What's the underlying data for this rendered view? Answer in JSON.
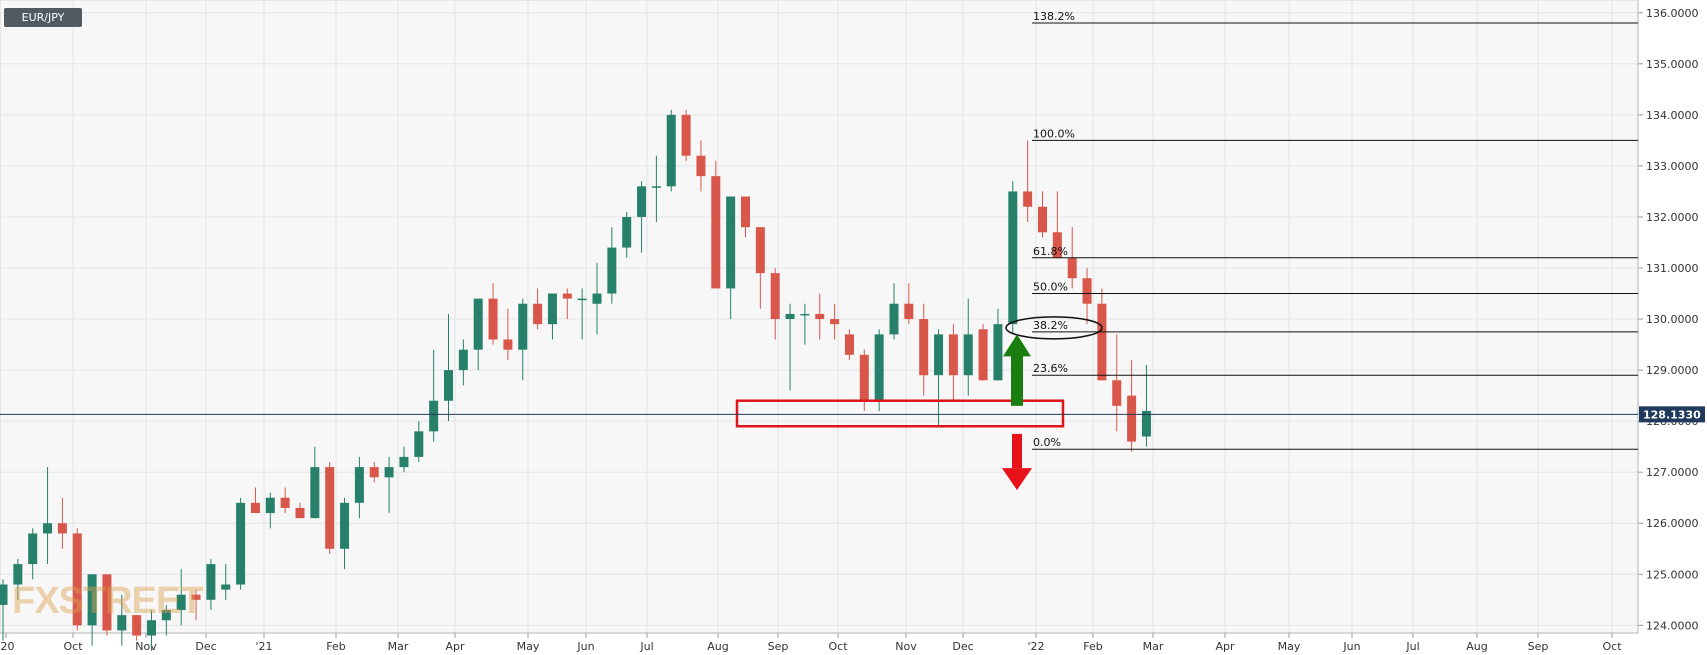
{
  "symbol": "EUR/JPY",
  "watermark": "FXSTREET",
  "colors": {
    "up": "#26806a",
    "down": "#d9574a",
    "grid": "#e2e6ea",
    "background": "#f7f7f7",
    "axis_text": "#333333",
    "price_line": "#1f3a5c",
    "support_box": "#e0141c",
    "up_arrow": "#1a7d10",
    "down_arrow": "#e8121a"
  },
  "chart_data": {
    "type": "candlestick",
    "timeframe": "weekly",
    "y_axis": {
      "ticks": [
        "124.0000",
        "125.0000",
        "126.0000",
        "127.0000",
        "128.0000",
        "129.0000",
        "130.0000",
        "131.0000",
        "132.0000",
        "133.0000",
        "134.0000",
        "135.0000",
        "136.0000"
      ],
      "range": [
        123.85,
        136.25
      ]
    },
    "x_axis": {
      "ticks": [
        "'20",
        "Oct",
        "Nov",
        "Dec",
        "'21",
        "Feb",
        "Mar",
        "Apr",
        "May",
        "Jun",
        "Jul",
        "Aug",
        "Sep",
        "Oct",
        "Nov",
        "Dec",
        "'22",
        "Feb",
        "Mar",
        "Apr",
        "May",
        "Jun",
        "Jul",
        "Aug",
        "Sep",
        "Oct"
      ]
    },
    "current_price": "128.1330",
    "candles": [
      [
        124.4,
        124.9,
        123.7,
        124.8
      ],
      [
        124.8,
        125.3,
        124.5,
        125.2
      ],
      [
        125.2,
        125.9,
        124.9,
        125.8
      ],
      [
        125.8,
        127.1,
        125.2,
        126.0
      ],
      [
        126.0,
        126.5,
        125.5,
        125.8
      ],
      [
        125.8,
        125.9,
        123.9,
        124.0
      ],
      [
        124.0,
        125.0,
        123.6,
        125.0
      ],
      [
        125.0,
        125.0,
        123.8,
        123.9
      ],
      [
        123.9,
        124.6,
        123.6,
        124.2
      ],
      [
        124.2,
        124.2,
        123.7,
        123.8
      ],
      [
        123.8,
        124.3,
        123.5,
        124.1
      ],
      [
        124.1,
        124.4,
        123.8,
        124.3
      ],
      [
        124.3,
        125.1,
        124.0,
        124.6
      ],
      [
        124.6,
        124.7,
        124.1,
        124.5
      ],
      [
        124.5,
        125.3,
        124.3,
        125.2
      ],
      [
        124.7,
        125.2,
        124.5,
        124.8
      ],
      [
        124.8,
        126.5,
        124.7,
        126.4
      ],
      [
        126.4,
        126.7,
        126.2,
        126.2
      ],
      [
        126.2,
        126.6,
        125.9,
        126.5
      ],
      [
        126.5,
        126.7,
        126.2,
        126.3
      ],
      [
        126.3,
        126.4,
        126.1,
        126.1
      ],
      [
        126.1,
        127.5,
        126.1,
        127.1
      ],
      [
        127.1,
        127.2,
        125.4,
        125.5
      ],
      [
        125.5,
        126.5,
        125.1,
        126.4
      ],
      [
        126.4,
        127.3,
        126.1,
        127.1
      ],
      [
        127.1,
        127.2,
        126.8,
        126.9
      ],
      [
        126.9,
        127.3,
        126.2,
        127.1
      ],
      [
        127.1,
        127.5,
        127.0,
        127.3
      ],
      [
        127.3,
        128.0,
        127.2,
        127.8
      ],
      [
        127.8,
        129.4,
        127.6,
        128.4
      ],
      [
        128.4,
        130.1,
        128.0,
        129.0
      ],
      [
        129.0,
        129.6,
        128.7,
        129.4
      ],
      [
        129.4,
        130.4,
        129.0,
        130.4
      ],
      [
        130.4,
        130.7,
        129.5,
        129.6
      ],
      [
        129.6,
        130.2,
        129.2,
        129.4
      ],
      [
        129.4,
        130.4,
        128.8,
        130.3
      ],
      [
        130.3,
        130.6,
        129.8,
        129.9
      ],
      [
        129.9,
        130.5,
        129.6,
        130.5
      ],
      [
        130.5,
        130.6,
        130.0,
        130.4
      ],
      [
        130.4,
        130.6,
        129.6,
        130.4
      ],
      [
        130.3,
        131.1,
        129.7,
        130.5
      ],
      [
        130.5,
        131.8,
        130.3,
        131.4
      ],
      [
        131.4,
        132.1,
        131.2,
        132.0
      ],
      [
        132.0,
        132.7,
        131.3,
        132.6
      ],
      [
        132.6,
        133.2,
        131.9,
        132.6
      ],
      [
        132.6,
        134.1,
        132.5,
        134.0
      ],
      [
        134.0,
        134.1,
        133.1,
        133.2
      ],
      [
        133.2,
        133.5,
        132.5,
        132.8
      ],
      [
        132.8,
        133.1,
        130.6,
        130.6
      ],
      [
        130.6,
        132.4,
        130.0,
        132.4
      ],
      [
        132.4,
        132.4,
        131.6,
        131.8
      ],
      [
        131.8,
        131.8,
        130.2,
        130.9
      ],
      [
        130.9,
        131.0,
        129.6,
        130.0
      ],
      [
        130.0,
        130.3,
        128.6,
        130.1
      ],
      [
        130.1,
        130.3,
        129.5,
        130.1
      ],
      [
        130.1,
        130.5,
        129.6,
        130.0
      ],
      [
        130.0,
        130.3,
        129.6,
        129.9
      ],
      [
        129.7,
        129.8,
        129.2,
        129.3
      ],
      [
        129.3,
        129.4,
        128.2,
        128.4
      ],
      [
        128.4,
        129.8,
        128.2,
        129.7
      ],
      [
        129.7,
        130.7,
        129.6,
        130.3
      ],
      [
        130.3,
        130.7,
        129.9,
        130.0
      ],
      [
        130.0,
        130.3,
        128.5,
        128.9
      ],
      [
        128.9,
        129.8,
        127.9,
        129.7
      ],
      [
        129.7,
        129.9,
        128.4,
        128.9
      ],
      [
        128.9,
        130.4,
        128.5,
        129.7
      ],
      [
        129.8,
        129.9,
        128.8,
        128.8
      ],
      [
        128.8,
        130.2,
        128.8,
        129.9
      ],
      [
        129.9,
        132.7,
        129.7,
        132.5
      ],
      [
        132.5,
        133.5,
        131.9,
        132.2
      ],
      [
        132.2,
        132.5,
        131.6,
        131.7
      ],
      [
        131.7,
        132.5,
        131.2,
        131.2
      ],
      [
        131.2,
        131.8,
        130.6,
        130.8
      ],
      [
        130.8,
        131.0,
        129.9,
        130.3
      ],
      [
        130.3,
        130.6,
        128.8,
        128.8
      ],
      [
        128.8,
        129.7,
        127.8,
        128.3
      ],
      [
        128.5,
        129.2,
        127.4,
        127.6
      ],
      [
        127.7,
        129.1,
        127.5,
        128.2
      ]
    ],
    "fibonacci": [
      {
        "label": "138.2%",
        "price": 135.8
      },
      {
        "label": "100.0%",
        "price": 133.5
      },
      {
        "label": "61.8%",
        "price": 131.2
      },
      {
        "label": "50.0%",
        "price": 130.5
      },
      {
        "label": "38.2%",
        "price": 129.75
      },
      {
        "label": "23.6%",
        "price": 128.9
      },
      {
        "label": "0.0%",
        "price": 127.45
      }
    ],
    "annotations": {
      "support_zone": [
        127.9,
        128.4
      ],
      "circled_level": "38.2%",
      "up_arrow": "from support zone up toward the 38.2% level",
      "down_arrow": "from support zone down"
    }
  }
}
